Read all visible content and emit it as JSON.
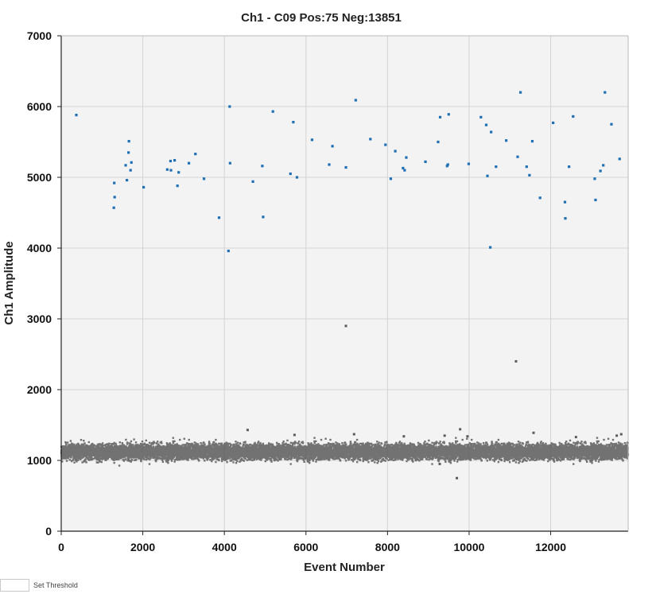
{
  "chart_data": {
    "type": "scatter",
    "title": "Ch1 - C09 Pos:75 Neg:13851",
    "xlabel": "Event Number",
    "ylabel": "Ch1 Amplitude",
    "xlim": [
      0,
      13900
    ],
    "ylim": [
      0,
      7000
    ],
    "x_ticks": [
      0,
      2000,
      4000,
      6000,
      8000,
      10000,
      12000
    ],
    "y_ticks": [
      0,
      1000,
      2000,
      3000,
      4000,
      5000,
      6000,
      7000
    ],
    "grid": true,
    "colors": {
      "positive": "#1f6fb4",
      "negative": "#5a5a5a",
      "plot_bg": "#f3f3f3",
      "grid": "#d4d4d4"
    },
    "series": [
      {
        "values": [
          [
            370,
            5880
          ],
          [
            1290,
            4570
          ],
          [
            1300,
            4920
          ],
          [
            1310,
            4720
          ],
          [
            1580,
            5170
          ],
          [
            1610,
            4960
          ],
          [
            1650,
            5350
          ],
          [
            1660,
            5510
          ],
          [
            1700,
            5100
          ],
          [
            1720,
            5210
          ],
          [
            2020,
            4860
          ],
          [
            2600,
            5110
          ],
          [
            2680,
            5230
          ],
          [
            2690,
            5100
          ],
          [
            2780,
            5240
          ],
          [
            2850,
            4880
          ],
          [
            2880,
            5070
          ],
          [
            3130,
            5200
          ],
          [
            3290,
            5330
          ],
          [
            3500,
            4980
          ],
          [
            3870,
            4430
          ],
          [
            4100,
            3960
          ],
          [
            4130,
            6000
          ],
          [
            4140,
            5200
          ],
          [
            4700,
            4940
          ],
          [
            4930,
            5160
          ],
          [
            4950,
            4440
          ],
          [
            5190,
            5930
          ],
          [
            5620,
            5050
          ],
          [
            5690,
            5780
          ],
          [
            5780,
            5000
          ],
          [
            6150,
            5530
          ],
          [
            6570,
            5180
          ],
          [
            6650,
            5440
          ],
          [
            6980,
            5140
          ],
          [
            7220,
            6090
          ],
          [
            7580,
            5540
          ],
          [
            7950,
            5460
          ],
          [
            8080,
            4980
          ],
          [
            8190,
            5370
          ],
          [
            8380,
            5130
          ],
          [
            8420,
            5100
          ],
          [
            8460,
            5280
          ],
          [
            8930,
            5220
          ],
          [
            9240,
            5500
          ],
          [
            9290,
            5850
          ],
          [
            9460,
            5160
          ],
          [
            9480,
            5180
          ],
          [
            9500,
            5890
          ],
          [
            9990,
            5190
          ],
          [
            10290,
            5850
          ],
          [
            10420,
            5740
          ],
          [
            10450,
            5020
          ],
          [
            10520,
            4010
          ],
          [
            10540,
            5640
          ],
          [
            10660,
            5150
          ],
          [
            10910,
            5520
          ],
          [
            11190,
            5290
          ],
          [
            11260,
            6200
          ],
          [
            11410,
            5150
          ],
          [
            11480,
            5030
          ],
          [
            11550,
            5510
          ],
          [
            11740,
            4710
          ],
          [
            12060,
            5770
          ],
          [
            12350,
            4650
          ],
          [
            12360,
            4420
          ],
          [
            12450,
            5150
          ],
          [
            12550,
            5860
          ],
          [
            13080,
            4980
          ],
          [
            13100,
            4680
          ],
          [
            13220,
            5090
          ],
          [
            13290,
            5170
          ],
          [
            13330,
            6200
          ],
          [
            13490,
            5750
          ],
          [
            13690,
            5260
          ]
        ]
      },
      {
        "values": [
          [
            6980,
            2900
          ],
          [
            11150,
            2400
          ],
          [
            9700,
            750
          ],
          [
            9280,
            950
          ],
          [
            4570,
            1430
          ],
          [
            9780,
            1440
          ],
          [
            11580,
            1390
          ],
          [
            13730,
            1370
          ],
          [
            13620,
            1350
          ],
          [
            5720,
            1360
          ],
          [
            7180,
            1370
          ],
          [
            8400,
            1340
          ],
          [
            9400,
            1350
          ],
          [
            9960,
            1340
          ],
          [
            12620,
            1330
          ]
        ],
        "band": {
          "count": 13851,
          "center": 1120,
          "spread": 115
        }
      }
    ]
  },
  "footer": {
    "threshold_label": "Set Threshold"
  }
}
